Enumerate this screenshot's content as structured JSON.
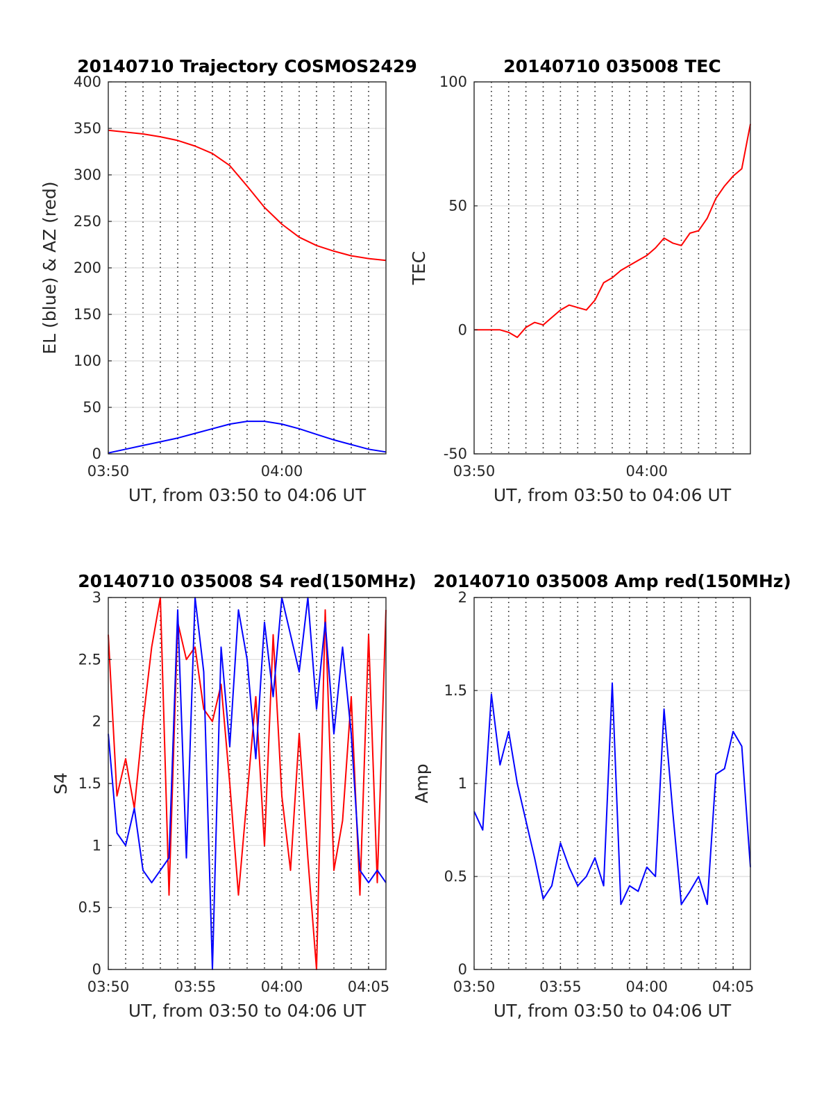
{
  "chart_data": [
    {
      "type": "line",
      "title": "20140710 Trajectory COSMOS2429",
      "xlabel": "UT, from 03:50 to 04:06 UT",
      "ylabel": "EL (blue) & AZ (red)",
      "xlim": [
        "03:50",
        "04:06"
      ],
      "ylim": [
        0,
        400
      ],
      "xticks": [
        "03:50",
        "04:00"
      ],
      "yticks": [
        "0",
        "50",
        "100",
        "150",
        "200",
        "250",
        "300",
        "350",
        "400"
      ],
      "grid": "y solid, x dotted every 1 min",
      "series": [
        {
          "color": "#0000ff",
          "x": [
            "03:50",
            "03:51",
            "03:52",
            "03:53",
            "03:54",
            "03:55",
            "03:56",
            "03:57",
            "03:58",
            "03:59",
            "04:00",
            "04:01",
            "04:02",
            "04:03",
            "04:04",
            "04:05",
            "04:06"
          ],
          "values": [
            1,
            5,
            9,
            13,
            17,
            22,
            27,
            32,
            35,
            35,
            32,
            27,
            21,
            15,
            10,
            5,
            2
          ]
        },
        {
          "color": "#ff0000",
          "x": [
            "03:50",
            "03:51",
            "03:52",
            "03:53",
            "03:54",
            "03:55",
            "03:56",
            "03:57",
            "03:58",
            "03:59",
            "04:00",
            "04:01",
            "04:02",
            "04:03",
            "04:04",
            "04:05",
            "04:06"
          ],
          "values": [
            348,
            346,
            344,
            341,
            337,
            331,
            323,
            310,
            288,
            265,
            247,
            233,
            224,
            218,
            213,
            210,
            208
          ]
        }
      ]
    },
    {
      "type": "line",
      "title": "20140710 035008 TEC",
      "xlabel": "UT, from 03:50 to 04:06 UT",
      "ylabel": "TEC",
      "xlim": [
        "03:50",
        "04:06"
      ],
      "ylim": [
        -50,
        100
      ],
      "xticks": [
        "03:50",
        "04:00"
      ],
      "yticks": [
        "-50",
        "0",
        "50",
        "100"
      ],
      "grid": "y solid, x dotted every 1 min",
      "series": [
        {
          "color": "#ff0000",
          "x": [
            "03:50",
            "03:50:30",
            "03:51",
            "03:51:30",
            "03:52",
            "03:52:30",
            "03:53",
            "03:53:30",
            "03:54",
            "03:54:30",
            "03:55",
            "03:55:30",
            "03:56",
            "03:56:30",
            "03:57",
            "03:57:30",
            "03:58",
            "03:58:30",
            "03:59",
            "03:59:30",
            "04:00",
            "04:00:30",
            "04:01",
            "04:01:30",
            "04:02",
            "04:02:30",
            "04:03",
            "04:03:30",
            "04:04",
            "04:04:30",
            "04:05",
            "04:05:30",
            "04:06"
          ],
          "values": [
            0,
            0,
            0,
            0,
            -1,
            -3,
            1,
            3,
            2,
            5,
            8,
            10,
            9,
            8,
            12,
            19,
            21,
            24,
            26,
            28,
            30,
            33,
            37,
            35,
            34,
            39,
            40,
            45,
            53,
            58,
            62,
            65,
            83
          ]
        }
      ]
    },
    {
      "type": "line",
      "title": "20140710 035008 S4 red(150MHz)",
      "xlabel": "UT, from 03:50 to 04:06 UT",
      "ylabel": "S4",
      "xlim": [
        "03:50",
        "04:06"
      ],
      "ylim": [
        0,
        3
      ],
      "xticks": [
        "03:50",
        "03:55",
        "04:00",
        "04:05"
      ],
      "yticks": [
        "0",
        "0.5",
        "1",
        "1.5",
        "2",
        "2.5",
        "3"
      ],
      "grid": "y solid, x dotted every 1 min",
      "series": [
        {
          "color": "#ff0000",
          "x": [
            "03:50",
            "03:50:30",
            "03:51",
            "03:51:30",
            "03:52",
            "03:52:30",
            "03:53",
            "03:53:30",
            "03:54",
            "03:54:30",
            "03:55",
            "03:55:30",
            "03:56",
            "03:56:30",
            "03:57",
            "03:57:30",
            "03:58",
            "03:58:30",
            "03:59",
            "03:59:30",
            "04:00",
            "04:00:30",
            "04:01",
            "04:01:30",
            "04:02",
            "04:02:30",
            "04:03",
            "04:03:30",
            "04:04",
            "04:04:30",
            "04:05",
            "04:05:30",
            "04:06"
          ],
          "values": [
            2.7,
            1.4,
            1.7,
            1.3,
            2.0,
            2.6,
            3.0,
            0.6,
            2.8,
            2.5,
            2.6,
            2.1,
            2.0,
            2.3,
            1.5,
            0.6,
            1.4,
            2.2,
            1.0,
            2.7,
            1.4,
            0.8,
            1.9,
            0.9,
            0.0,
            2.9,
            0.8,
            1.2,
            2.2,
            0.6,
            2.7,
            0.7,
            2.9
          ]
        },
        {
          "color": "#0000ff",
          "x": [
            "03:50",
            "03:50:30",
            "03:51",
            "03:51:30",
            "03:52",
            "03:52:30",
            "03:53",
            "03:53:30",
            "03:54",
            "03:54:30",
            "03:55",
            "03:55:30",
            "03:56",
            "03:56:30",
            "03:57",
            "03:57:30",
            "03:58",
            "03:58:30",
            "03:59",
            "03:59:30",
            "04:00",
            "04:00:30",
            "04:01",
            "04:01:30",
            "04:02",
            "04:02:30",
            "04:03",
            "04:03:30",
            "04:04",
            "04:04:30",
            "04:05",
            "04:05:30",
            "04:06"
          ],
          "values": [
            1.9,
            1.1,
            1.0,
            1.3,
            0.8,
            0.7,
            0.8,
            0.9,
            2.9,
            0.9,
            3.0,
            2.4,
            0.0,
            2.6,
            1.8,
            2.9,
            2.5,
            1.7,
            2.8,
            2.2,
            3.0,
            2.7,
            2.4,
            3.0,
            2.1,
            2.8,
            1.9,
            2.6,
            1.9,
            0.8,
            0.7,
            0.8,
            0.7
          ]
        }
      ]
    },
    {
      "type": "line",
      "title": "20140710 035008 Amp red(150MHz)",
      "xlabel": "UT, from 03:50 to 04:06 UT",
      "ylabel": "Amp",
      "xlim": [
        "03:50",
        "04:06"
      ],
      "ylim": [
        0,
        2
      ],
      "xticks": [
        "03:50",
        "03:55",
        "04:00",
        "04:05"
      ],
      "yticks": [
        "0",
        "0.5",
        "1",
        "1.5",
        "2"
      ],
      "grid": "y solid, x dotted every 1 min",
      "series": [
        {
          "color": "#0000ff",
          "x": [
            "03:50",
            "03:50:30",
            "03:51",
            "03:51:30",
            "03:52",
            "03:52:30",
            "03:53",
            "03:53:30",
            "03:54",
            "03:54:30",
            "03:55",
            "03:55:30",
            "03:56",
            "03:56:30",
            "03:57",
            "03:57:30",
            "03:58",
            "03:58:30",
            "03:59",
            "03:59:30",
            "04:00",
            "04:00:30",
            "04:01",
            "04:01:30",
            "04:02",
            "04:02:30",
            "04:03",
            "04:03:30",
            "04:04",
            "04:04:30",
            "04:05",
            "04:05:30",
            "04:06"
          ],
          "values": [
            0.85,
            0.75,
            1.48,
            1.1,
            1.28,
            1.0,
            0.8,
            0.6,
            0.38,
            0.45,
            0.68,
            0.55,
            0.45,
            0.5,
            0.6,
            0.45,
            1.54,
            0.35,
            0.45,
            0.42,
            0.55,
            0.5,
            1.4,
            0.85,
            0.35,
            0.42,
            0.5,
            0.35,
            1.05,
            1.08,
            1.28,
            1.2,
            0.55
          ]
        }
      ]
    }
  ]
}
